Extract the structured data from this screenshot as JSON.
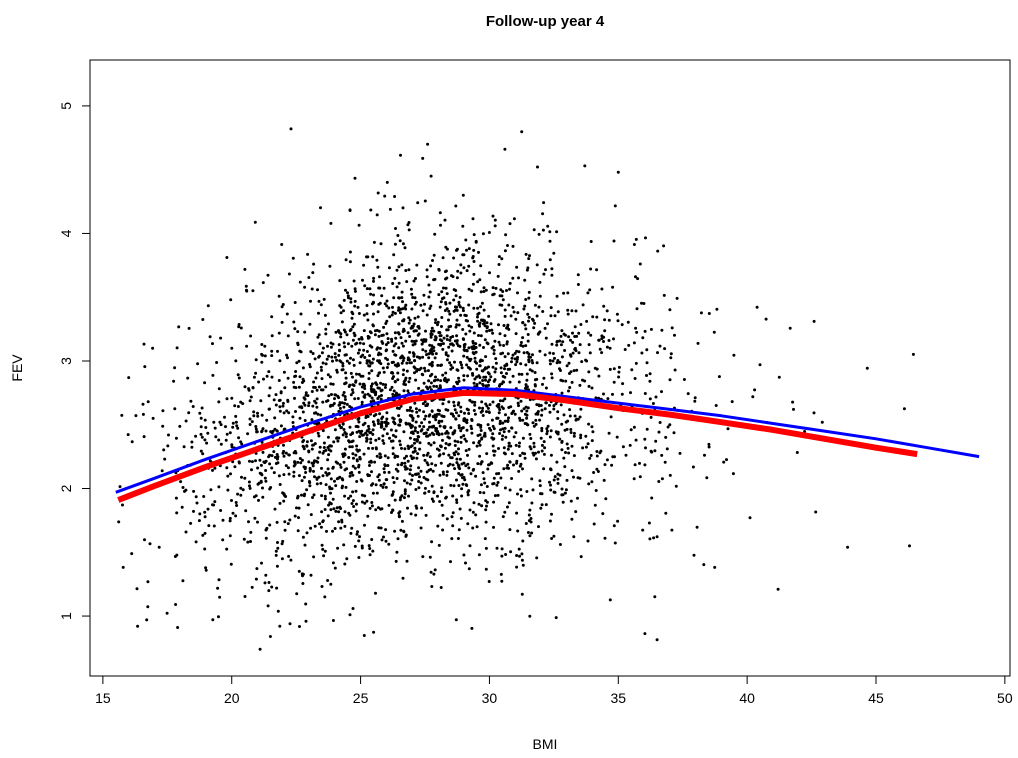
{
  "chart_data": {
    "type": "scatter",
    "title": "Follow-up year 4",
    "xlabel": "BMI",
    "ylabel": "FEV",
    "xlim": [
      14.5,
      50.2
    ],
    "ylim": [
      0.53,
      5.36
    ],
    "x_ticks": [
      "15",
      "20",
      "25",
      "30",
      "35",
      "40",
      "45",
      "50"
    ],
    "y_ticks": [
      "1",
      "2",
      "3",
      "4",
      "5"
    ],
    "grid": false,
    "legend": "none",
    "points_color": "#000000",
    "scatter_generator": {
      "n": 3200,
      "x_center": 27.0,
      "x_spread": 4.3,
      "y_spread": 0.6,
      "x_min": 15.5,
      "x_max": 46.5,
      "y_min": 0.73,
      "y_max": 4.85,
      "seed": 4
    },
    "scatter_sample": [
      {
        "x": 22.3,
        "y": 4.82
      },
      {
        "x": 27.6,
        "y": 4.7
      },
      {
        "x": 30.6,
        "y": 4.66
      },
      {
        "x": 33.7,
        "y": 4.53
      },
      {
        "x": 35.0,
        "y": 4.48
      },
      {
        "x": 16.0,
        "y": 2.87
      },
      {
        "x": 16.7,
        "y": 0.97
      },
      {
        "x": 17.9,
        "y": 0.91
      },
      {
        "x": 21.1,
        "y": 0.74
      },
      {
        "x": 21.5,
        "y": 0.84
      },
      {
        "x": 41.2,
        "y": 1.21
      },
      {
        "x": 43.9,
        "y": 1.54
      },
      {
        "x": 46.3,
        "y": 1.55
      },
      {
        "x": 42.6,
        "y": 3.31
      },
      {
        "x": 41.8,
        "y": 2.62
      },
      {
        "x": 40.5,
        "y": 2.97
      }
    ],
    "series": [
      {
        "name": "",
        "color": "#0000ff",
        "line_width": 3,
        "x": [
          15.5,
          17,
          19,
          21,
          23,
          25,
          27,
          29,
          31,
          33,
          35,
          37,
          39,
          41,
          43,
          45,
          47,
          49
        ],
        "y": [
          1.97,
          2.08,
          2.23,
          2.37,
          2.51,
          2.64,
          2.74,
          2.79,
          2.77,
          2.72,
          2.67,
          2.62,
          2.57,
          2.51,
          2.45,
          2.39,
          2.32,
          2.25
        ]
      },
      {
        "name": "",
        "color": "#ff0000",
        "line_width": 6,
        "x": [
          15.6,
          17,
          19,
          21,
          23,
          25,
          27,
          29,
          31,
          33,
          35,
          37,
          39,
          41,
          43,
          45,
          46.6
        ],
        "y": [
          1.91,
          2.02,
          2.17,
          2.31,
          2.45,
          2.59,
          2.7,
          2.75,
          2.74,
          2.69,
          2.63,
          2.58,
          2.52,
          2.46,
          2.39,
          2.32,
          2.27
        ]
      }
    ]
  }
}
